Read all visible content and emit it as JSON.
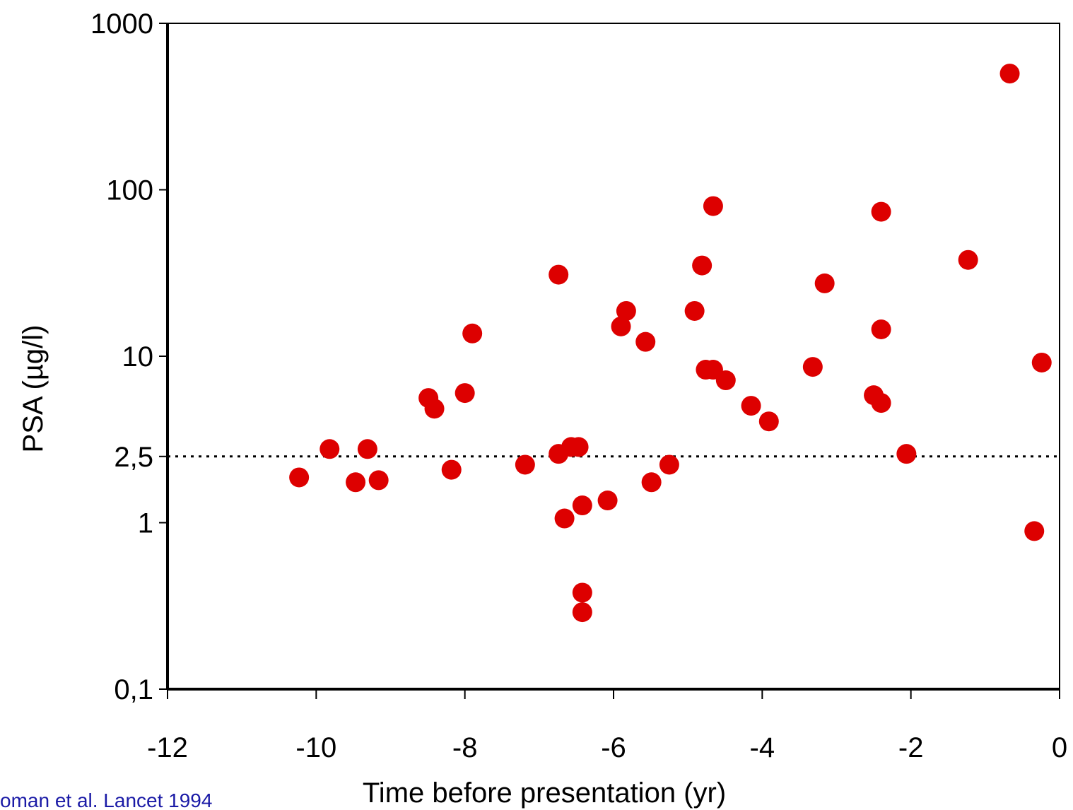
{
  "chart_data": {
    "type": "scatter",
    "x_label": "Time before presentation (yr)",
    "y_label": "PSA (µg/l)",
    "annotation": "oman et al. Lancet 1994",
    "log_y": true,
    "color": "#dd0000",
    "xlim": [
      -12,
      0
    ],
    "xticks": [
      -12,
      -10,
      -8,
      -6,
      -4,
      -2,
      0
    ],
    "ylim": [
      0.1,
      1000
    ],
    "yticks": [
      {
        "value": 0.1,
        "label": "0,1"
      },
      1,
      {
        "value": 2.5,
        "label": "2,5"
      },
      10,
      100,
      1000
    ],
    "reference_line": 2.5,
    "x": [
      -10.23,
      -9.82,
      -9.47,
      -9.31,
      -9.16,
      -8.49,
      -8.41,
      -8.18,
      -8.0,
      -7.9,
      -7.19,
      -6.74,
      -6.74,
      -6.66,
      -6.57,
      -6.47,
      -6.42,
      -6.42,
      -6.42,
      -6.08,
      -5.9,
      -5.83,
      -5.57,
      -5.49,
      -5.25,
      -4.91,
      -4.81,
      -4.76,
      -4.66,
      -4.66,
      -4.49,
      -4.15,
      -3.91,
      -3.32,
      -3.16,
      -2.5,
      -2.4,
      -2.4,
      -2.4,
      -2.06,
      -1.23,
      -0.67,
      -0.34,
      -0.24
    ],
    "values": [
      1.87,
      2.77,
      1.75,
      2.77,
      1.8,
      5.61,
      4.84,
      2.08,
      6.01,
      13.7,
      2.23,
      30.9,
      2.59,
      1.06,
      2.85,
      2.85,
      1.27,
      0.38,
      0.29,
      1.36,
      15.1,
      18.7,
      12.2,
      1.75,
      2.23,
      18.7,
      35.1,
      8.3,
      79.8,
      8.3,
      7.17,
      5.04,
      4.06,
      8.63,
      27.4,
      5.83,
      73.8,
      14.5,
      5.24,
      2.59,
      37.9,
      499,
      0.89,
      9.16
    ]
  }
}
